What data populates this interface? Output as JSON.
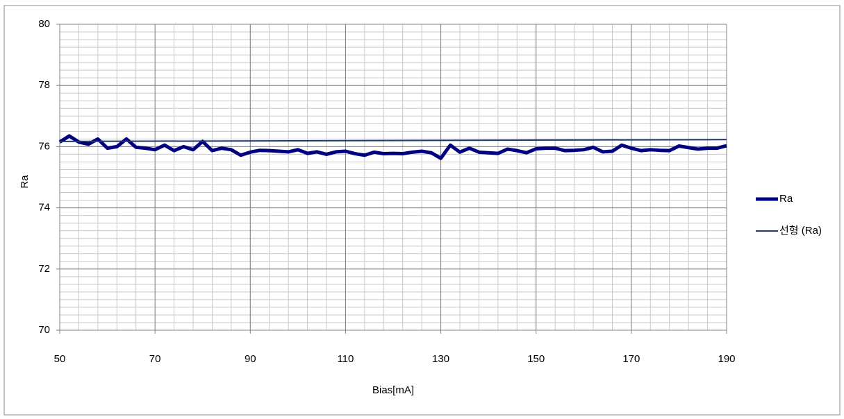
{
  "chart_data": {
    "type": "line",
    "x_label": "Bias[mA]",
    "y_label": "Ra",
    "x": [
      50,
      52,
      54,
      56,
      58,
      60,
      62,
      64,
      66,
      68,
      70,
      72,
      74,
      76,
      78,
      80,
      82,
      84,
      86,
      88,
      90,
      92,
      94,
      96,
      98,
      100,
      102,
      104,
      106,
      108,
      110,
      112,
      114,
      116,
      118,
      120,
      122,
      124,
      126,
      128,
      130,
      132,
      134,
      136,
      138,
      140,
      142,
      144,
      146,
      148,
      150,
      152,
      154,
      156,
      158,
      160,
      162,
      164,
      166,
      168,
      170,
      172,
      174,
      176,
      178,
      180,
      182,
      184,
      186,
      188,
      190
    ],
    "series": [
      {
        "name": "Ra",
        "color": "#000080",
        "width": 5,
        "values": [
          76.15,
          76.35,
          76.15,
          76.08,
          76.25,
          75.95,
          76.0,
          76.25,
          75.98,
          75.95,
          75.9,
          76.05,
          75.87,
          76.0,
          75.9,
          76.17,
          75.87,
          75.95,
          75.9,
          75.72,
          75.82,
          75.88,
          75.87,
          75.85,
          75.83,
          75.9,
          75.78,
          75.83,
          75.75,
          75.83,
          75.85,
          75.77,
          75.72,
          75.82,
          75.77,
          75.78,
          75.77,
          75.82,
          75.85,
          75.8,
          75.62,
          76.05,
          75.82,
          75.95,
          75.82,
          75.8,
          75.78,
          75.92,
          75.87,
          75.8,
          75.93,
          75.95,
          75.95,
          75.87,
          75.88,
          75.9,
          75.98,
          75.83,
          75.85,
          76.05,
          75.95,
          75.87,
          75.9,
          75.88,
          75.87,
          76.02,
          75.97,
          75.92,
          75.95,
          75.95,
          76.03
        ]
      },
      {
        "name": "선형 (Ra)",
        "color": "#1f3a6e",
        "width": 2,
        "x": [
          50,
          190
        ],
        "values": [
          76.17,
          76.23
        ]
      }
    ],
    "xlim": [
      50,
      190
    ],
    "xticks": [
      50,
      70,
      90,
      110,
      130,
      150,
      170,
      190
    ],
    "ylim": [
      70,
      80
    ],
    "yticks": [
      70,
      72,
      74,
      76,
      78,
      80
    ],
    "grid": true,
    "minor_x_step": 4,
    "minor_y_step": 0.25,
    "legend": "right"
  }
}
